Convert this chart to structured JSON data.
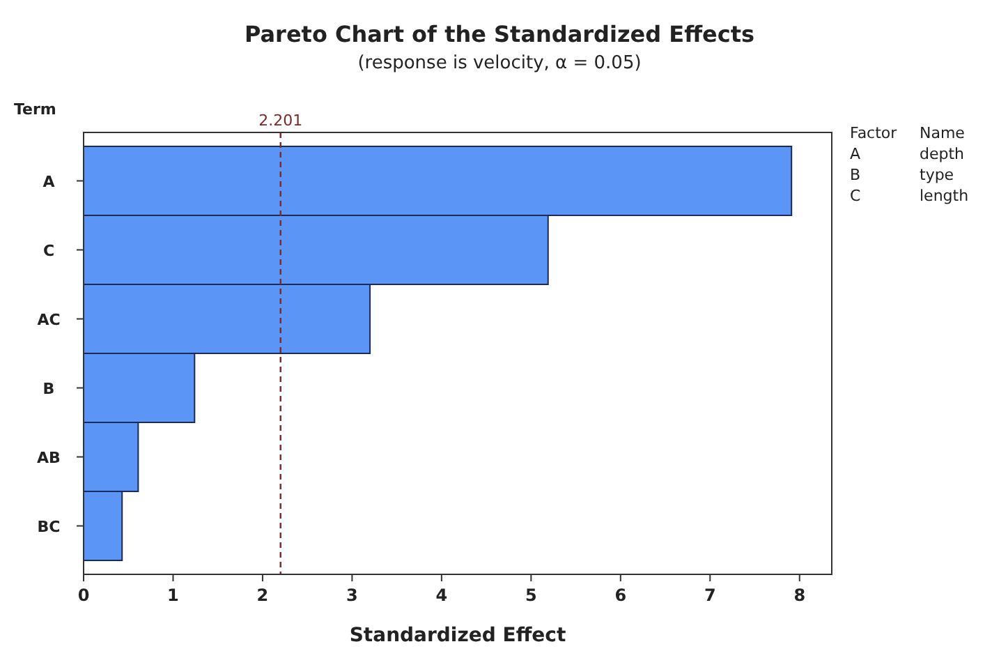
{
  "chart_data": {
    "type": "bar",
    "orientation": "horizontal",
    "title": "Pareto Chart of the Standardized Effects",
    "subtitle": "(response is velocity, α = 0.05)",
    "xlabel": "Standardized Effect",
    "ylabel": "Term",
    "categories": [
      "A",
      "C",
      "AC",
      "B",
      "AB",
      "BC"
    ],
    "values": [
      7.91,
      5.19,
      3.2,
      1.24,
      0.61,
      0.43
    ],
    "color": "#5b95f5",
    "xlim": [
      0,
      8.36
    ],
    "xticks": [
      0,
      1,
      2,
      3,
      4,
      5,
      6,
      7,
      8
    ],
    "grid": false,
    "ref_lines": [
      {
        "axis": "x",
        "value": 2.201,
        "label": "2.201",
        "color": "#7a2a2a",
        "line_style": "dashed"
      }
    ],
    "annotations": [
      "Factor",
      "Name",
      "A",
      "depth",
      "B",
      "type",
      "C",
      "length"
    ]
  }
}
